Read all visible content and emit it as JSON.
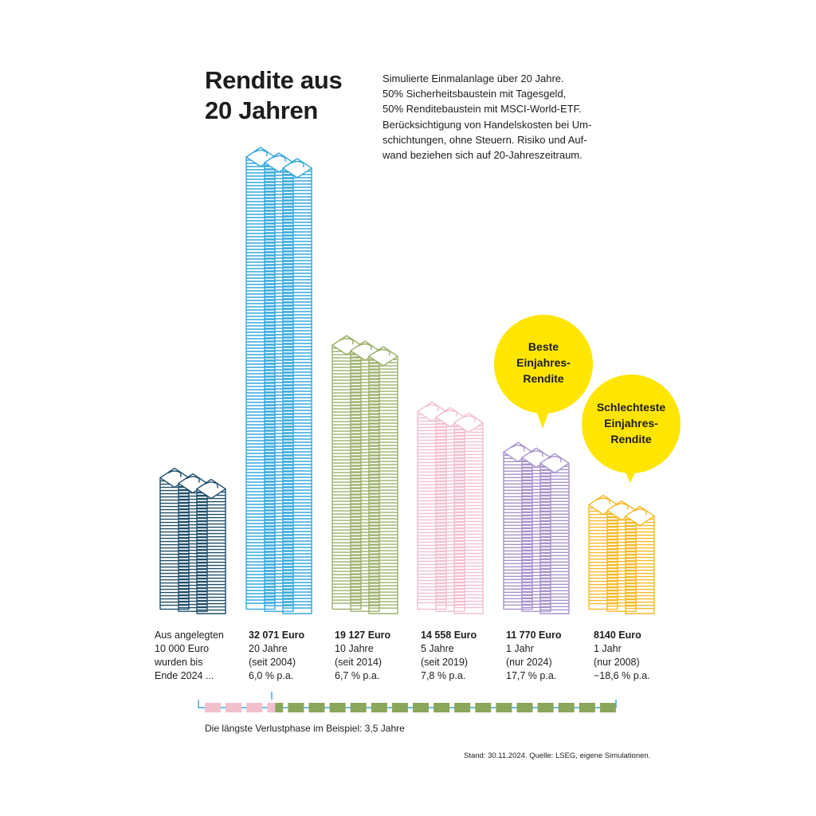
{
  "title": [
    "Rendite aus",
    "20 Jahren"
  ],
  "description": [
    "Simulierte Einmalanlage über 20 Jahre.",
    "50% Sicherheitsbaustein mit Tagesgeld,",
    "50% Renditebaustein mit MSCI-World-ETF.",
    "Berücksichtigung von Handelskosten bei Um-",
    "schichtungen, ohne Steuern. Risiko und Auf-",
    "wand beziehen sich auf 20-Jahreszeitraum."
  ],
  "intro_label": [
    "Aus angelegten",
    "10 000 Euro",
    "wurden bis",
    "Ende 2024 ..."
  ],
  "bubbles": [
    {
      "lines": [
        "Beste",
        "Einjahres-",
        "Rendite"
      ]
    },
    {
      "lines": [
        "Schlechteste",
        "Einjahres-",
        "Rendite"
      ]
    }
  ],
  "loss_phase": {
    "label": "Die längste Verlustphase im Beispiel: 3,5 Jahre",
    "loss_years": 3.5,
    "total_years": 20
  },
  "source": "Stand: 30.11.2024. Quelle: LSEG, eigene Simulationen.",
  "colors": {
    "start": "#1f4e6b",
    "y20": "#35a8dd",
    "y10": "#9cb06a",
    "y5": "#f2bfcf",
    "best": "#a892cc",
    "worst": "#f7b825",
    "bubble": "#ffe500",
    "loss": "#f2bfcf",
    "gain": "#8aa65a"
  },
  "chart_data": {
    "type": "bar",
    "unit": "Euro",
    "categories": [
      "Aus angelegten 10 000 Euro wurden bis Ende 2024 ...",
      "20 Jahre (seit 2004)",
      "10 Jahre (seit 2014)",
      "5 Jahre (seit 2019)",
      "1 Jahr (nur 2024)",
      "1 Jahr (nur 2008)"
    ],
    "values": [
      10000,
      32071,
      19127,
      14558,
      11770,
      8140
    ],
    "bars": [
      {
        "value": 10000,
        "lines": []
      },
      {
        "value": 32071,
        "lines": [
          "32 071 Euro",
          "20 Jahre",
          "(seit 2004)",
          "6,0 % p.a."
        ]
      },
      {
        "value": 19127,
        "lines": [
          "19 127 Euro",
          "10 Jahre",
          "(seit 2014)",
          "6,7 % p.a."
        ]
      },
      {
        "value": 14558,
        "lines": [
          "14 558 Euro",
          "5 Jahre",
          "(seit 2019)",
          "7,8 % p.a."
        ]
      },
      {
        "value": 11770,
        "lines": [
          "11 770 Euro",
          "1 Jahr",
          "(nur 2024)",
          "17,7 % p.a."
        ]
      },
      {
        "value": 8140,
        "lines": [
          "8140 Euro",
          "1 Jahr",
          "(nur 2008)",
          "−18,6 % p.a."
        ]
      }
    ]
  }
}
